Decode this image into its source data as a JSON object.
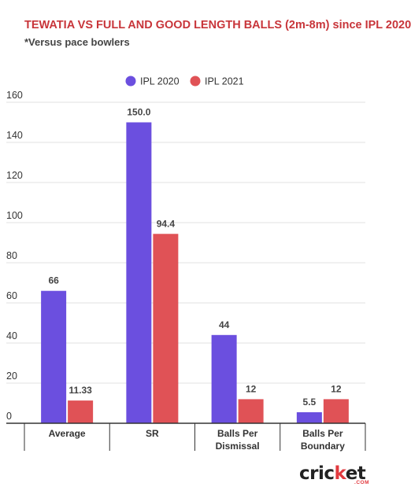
{
  "header": {
    "title": "TEWATIA VS FULL AND GOOD LENGTH BALLS (2m-8m) since IPL 2020",
    "subtitle": "*Versus pace bowlers"
  },
  "logo": {
    "prefix": "cric",
    "accent": "k",
    "suffix": "et",
    "sub": ".COM"
  },
  "colors": {
    "ipl2020": "#6b4fdf",
    "ipl2021": "#e05256",
    "grid": "#e2e2e2",
    "axis": "#333333"
  },
  "chart_data": {
    "type": "bar",
    "title": "TEWATIA VS FULL AND GOOD LENGTH BALLS (2m-8m) since IPL 2020",
    "subtitle": "*Versus pace bowlers",
    "categories": [
      [
        "Average"
      ],
      [
        "SR"
      ],
      [
        "Balls Per",
        "Dismissal"
      ],
      [
        "Balls Per",
        "Boundary"
      ]
    ],
    "series": [
      {
        "name": "IPL 2020",
        "values": [
          66,
          150,
          44,
          5.5
        ],
        "labels": [
          "66",
          "150.0",
          "44",
          "5.5"
        ]
      },
      {
        "name": "IPL 2021",
        "values": [
          11.33,
          94.4,
          12,
          12
        ],
        "labels": [
          "11.33",
          "94.4",
          "12",
          "12"
        ]
      }
    ],
    "ylim": [
      0,
      160
    ],
    "yticks": [
      0,
      20,
      40,
      60,
      80,
      100,
      120,
      140,
      160
    ],
    "grid": true,
    "legend": "top-center"
  }
}
